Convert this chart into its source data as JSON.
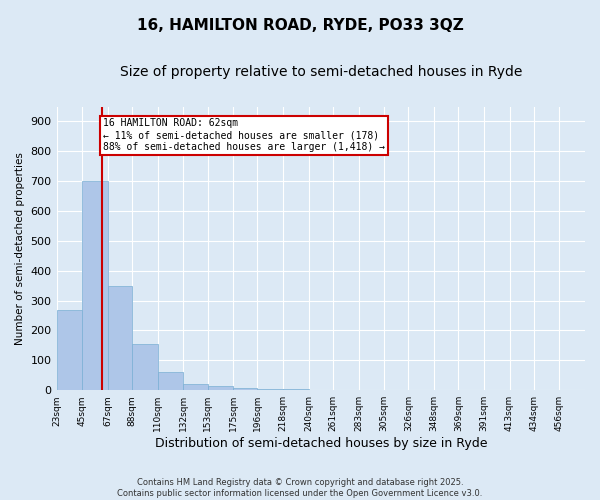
{
  "title": "16, HAMILTON ROAD, RYDE, PO33 3QZ",
  "subtitle": "Size of property relative to semi-detached houses in Ryde",
  "xlabel": "Distribution of semi-detached houses by size in Ryde",
  "ylabel": "Number of semi-detached properties",
  "bin_labels": [
    "23sqm",
    "45sqm",
    "67sqm",
    "88sqm",
    "110sqm",
    "132sqm",
    "153sqm",
    "175sqm",
    "196sqm",
    "218sqm",
    "240sqm",
    "261sqm",
    "283sqm",
    "305sqm",
    "326sqm",
    "348sqm",
    "369sqm",
    "391sqm",
    "413sqm",
    "434sqm",
    "456sqm"
  ],
  "bin_edges": [
    23,
    45,
    67,
    88,
    110,
    132,
    153,
    175,
    196,
    218,
    240,
    261,
    283,
    305,
    326,
    348,
    369,
    391,
    413,
    434,
    456
  ],
  "bar_heights": [
    270,
    700,
    350,
    155,
    60,
    20,
    15,
    8,
    5,
    5,
    2,
    0,
    0,
    0,
    0,
    0,
    0,
    0,
    0,
    0
  ],
  "bar_color": "#aec6e8",
  "bar_edge_color": "#7aafd4",
  "subject_value": 62,
  "subject_label": "16 HAMILTON ROAD: 62sqm",
  "annotation_line1": "16 HAMILTON ROAD: 62sqm",
  "annotation_line2": "← 11% of semi-detached houses are smaller (178)",
  "annotation_line3": "88% of semi-detached houses are larger (1,418) →",
  "annotation_box_color": "#ffffff",
  "annotation_box_edge": "#cc0000",
  "subject_line_color": "#cc0000",
  "ylim": [
    0,
    950
  ],
  "yticks": [
    0,
    100,
    200,
    300,
    400,
    500,
    600,
    700,
    800,
    900
  ],
  "background_color": "#dce9f5",
  "plot_background": "#dce9f5",
  "grid_color": "#ffffff",
  "title_fontsize": 11,
  "subtitle_fontsize": 10,
  "footer_text": "Contains HM Land Registry data © Crown copyright and database right 2025.\nContains public sector information licensed under the Open Government Licence v3.0."
}
